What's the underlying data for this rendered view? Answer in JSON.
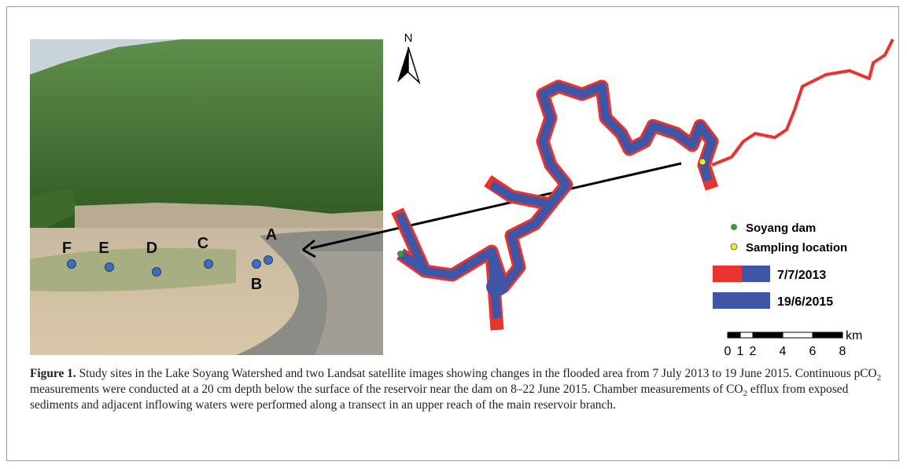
{
  "photo": {
    "sites": [
      "A",
      "B",
      "C",
      "D",
      "E",
      "F"
    ]
  },
  "map": {
    "north": "N",
    "legend": [
      {
        "label": "Soyang dam",
        "color": "#3a9a3a"
      },
      {
        "label": "Sampling location",
        "color": "#f2ee1e"
      },
      {
        "label": "7/7/2013",
        "color": "#e8332f"
      },
      {
        "label": "19/6/2015",
        "color": "#3f56a6"
      }
    ],
    "scale": {
      "unit": "km",
      "ticks": [
        "0",
        "1",
        "2",
        "4",
        "6",
        "8"
      ]
    }
  },
  "caption": {
    "label": "Figure 1.",
    "runs": [
      " Study sites in the Lake Soyang Watershed and two Landsat satellite images showing changes in the flooded area from 7 July 2013 to 19 June 2015. Continuous pCO",
      "2",
      " measurements were conducted at a 20 cm depth below the surface of the reservoir near the dam on 8–22 June 2015. Chamber measurements of CO",
      "2",
      " efflux from exposed sediments and adjacent inflowing waters were performed along a transect in an upper reach of the main reservoir branch."
    ]
  }
}
